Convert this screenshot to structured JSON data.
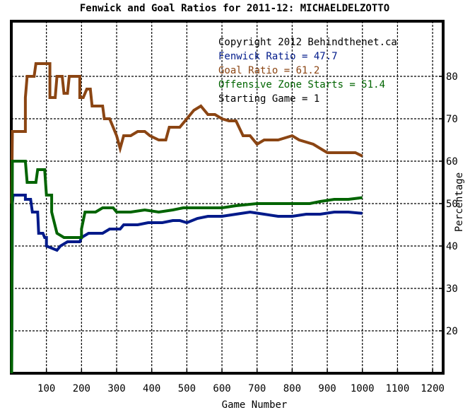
{
  "chart_data": {
    "type": "line",
    "title": "Fenwick and Goal Ratios for 2011-12: MICHAELDELZOTTO",
    "xlabel": "Game Number",
    "ylabel": "Percentage",
    "xlim": [
      0,
      1230
    ],
    "ylim": [
      10,
      93
    ],
    "x_ticks": [
      100,
      200,
      300,
      400,
      500,
      600,
      700,
      800,
      900,
      1000,
      1100,
      1200
    ],
    "x_tick_labels": [
      "100",
      "200",
      "300",
      "400",
      "500",
      "600",
      "700",
      "800",
      "900",
      "1000",
      "1100",
      "1200"
    ],
    "y_ticks": [
      20,
      30,
      40,
      50,
      60,
      70,
      80
    ],
    "y_tick_labels": [
      "20",
      "30",
      "40",
      "50",
      "60",
      "70",
      "80"
    ],
    "grid": true,
    "legend_placement": "top-right",
    "annotations": [
      {
        "text": "Copyright 2012 Behindthenet.ca",
        "color": "#000000"
      },
      {
        "text": "Fenwick Ratio = 47.7",
        "color": "#001a8a"
      },
      {
        "text": "Goal Ratio = 61.2",
        "color": "#8b4513"
      },
      {
        "text": "Offensive Zone Starts = 51.4",
        "color": "#006400"
      },
      {
        "text": "Starting Game = 1",
        "color": "#000000"
      }
    ],
    "series": [
      {
        "key": "fenwick",
        "color": "#001a8a",
        "points": [
          [
            1,
            10
          ],
          [
            3,
            50
          ],
          [
            5,
            52
          ],
          [
            40,
            52
          ],
          [
            40,
            51
          ],
          [
            55,
            51
          ],
          [
            60,
            48
          ],
          [
            75,
            48
          ],
          [
            78,
            43
          ],
          [
            90,
            43
          ],
          [
            95,
            42
          ],
          [
            100,
            42
          ],
          [
            100,
            40
          ],
          [
            115,
            39.5
          ],
          [
            130,
            39
          ],
          [
            140,
            40
          ],
          [
            160,
            41
          ],
          [
            195,
            41
          ],
          [
            200,
            42
          ],
          [
            220,
            43
          ],
          [
            260,
            43
          ],
          [
            280,
            44
          ],
          [
            310,
            44
          ],
          [
            320,
            45
          ],
          [
            360,
            45
          ],
          [
            390,
            45.5
          ],
          [
            430,
            45.5
          ],
          [
            460,
            46
          ],
          [
            480,
            46
          ],
          [
            500,
            45.5
          ],
          [
            530,
            46.5
          ],
          [
            560,
            47
          ],
          [
            600,
            47
          ],
          [
            640,
            47.5
          ],
          [
            680,
            48
          ],
          [
            720,
            47.5
          ],
          [
            760,
            47
          ],
          [
            800,
            47
          ],
          [
            840,
            47.5
          ],
          [
            880,
            47.5
          ],
          [
            920,
            48
          ],
          [
            960,
            48
          ],
          [
            1000,
            47.7
          ]
        ]
      },
      {
        "key": "goal",
        "color": "#8b4513",
        "points": [
          [
            1,
            50
          ],
          [
            3,
            67
          ],
          [
            20,
            67
          ],
          [
            40,
            67
          ],
          [
            40,
            75
          ],
          [
            45,
            80
          ],
          [
            65,
            80
          ],
          [
            70,
            83
          ],
          [
            110,
            83
          ],
          [
            110,
            75
          ],
          [
            125,
            75
          ],
          [
            130,
            80
          ],
          [
            145,
            80
          ],
          [
            150,
            76
          ],
          [
            160,
            76
          ],
          [
            165,
            80
          ],
          [
            195,
            80
          ],
          [
            195,
            75
          ],
          [
            205,
            75
          ],
          [
            215,
            77
          ],
          [
            225,
            77
          ],
          [
            230,
            73
          ],
          [
            260,
            73
          ],
          [
            265,
            70
          ],
          [
            280,
            70
          ],
          [
            290,
            68
          ],
          [
            300,
            66
          ],
          [
            310,
            63
          ],
          [
            320,
            66
          ],
          [
            340,
            66
          ],
          [
            360,
            67
          ],
          [
            380,
            67
          ],
          [
            395,
            66
          ],
          [
            420,
            65
          ],
          [
            440,
            65
          ],
          [
            450,
            68
          ],
          [
            480,
            68
          ],
          [
            500,
            70
          ],
          [
            520,
            72
          ],
          [
            540,
            73
          ],
          [
            560,
            71
          ],
          [
            580,
            71
          ],
          [
            600,
            70
          ],
          [
            620,
            69.5
          ],
          [
            640,
            69.5
          ],
          [
            660,
            66
          ],
          [
            680,
            66
          ],
          [
            700,
            64
          ],
          [
            720,
            65
          ],
          [
            760,
            65
          ],
          [
            800,
            66
          ],
          [
            820,
            65
          ],
          [
            860,
            64
          ],
          [
            880,
            63
          ],
          [
            900,
            62
          ],
          [
            920,
            62
          ],
          [
            960,
            62
          ],
          [
            980,
            62
          ],
          [
            1000,
            61.2
          ]
        ]
      },
      {
        "key": "ozs",
        "color": "#006400",
        "points": [
          [
            1,
            10
          ],
          [
            3,
            60
          ],
          [
            40,
            60
          ],
          [
            45,
            55
          ],
          [
            70,
            55
          ],
          [
            75,
            58
          ],
          [
            95,
            58
          ],
          [
            100,
            52
          ],
          [
            115,
            52
          ],
          [
            115,
            48
          ],
          [
            130,
            43
          ],
          [
            150,
            42
          ],
          [
            200,
            42
          ],
          [
            200,
            44
          ],
          [
            210,
            48
          ],
          [
            240,
            48
          ],
          [
            260,
            49
          ],
          [
            290,
            49
          ],
          [
            300,
            48
          ],
          [
            340,
            48
          ],
          [
            380,
            48.5
          ],
          [
            420,
            48
          ],
          [
            460,
            48.5
          ],
          [
            490,
            49
          ],
          [
            520,
            49
          ],
          [
            560,
            49
          ],
          [
            600,
            49
          ],
          [
            640,
            49.5
          ],
          [
            700,
            50
          ],
          [
            760,
            50
          ],
          [
            800,
            50
          ],
          [
            850,
            50
          ],
          [
            880,
            50.5
          ],
          [
            920,
            51
          ],
          [
            960,
            51
          ],
          [
            1000,
            51.4
          ]
        ]
      }
    ]
  }
}
